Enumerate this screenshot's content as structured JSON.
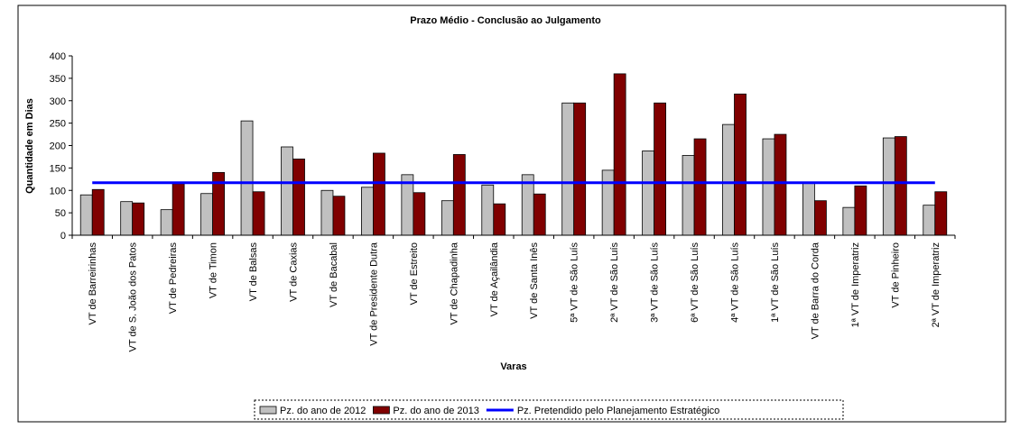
{
  "chart_data": {
    "type": "bar",
    "title": "Prazo Médio - Conclusão ao Julgamento",
    "y_label": "Quantidade em Dias",
    "x_label": "Varas",
    "categories": [
      "VT de Barreirinhas",
      "VT de S. João dos Patos",
      "VT de Pedreiras",
      "VT de Timon",
      "VT de Balsas",
      "VT de Caxias",
      "VT de Bacabal",
      "VT de Presidente Dutra",
      "VT de Estreito",
      "VT de Chapadinha",
      "VT de Açailândia",
      "VT de Santa Inês",
      "5ª VT de São Luís",
      "2ª VT de São Luís",
      "3ª VT de São Luís",
      "6ª VT de São Luís",
      "4ª VT de São Luís",
      "1ª VT de São Luís",
      "VT de Barra do Corda",
      "1ª VT de Imperatriz",
      "VT de Pinheiro",
      "2ª VT de Imperatriz"
    ],
    "series": [
      {
        "name": "Pz. do ano de 2012",
        "color": "#c0c0c0",
        "values": [
          90,
          75,
          57,
          93,
          255,
          197,
          100,
          107,
          135,
          77,
          112,
          135,
          295,
          145,
          188,
          178,
          247,
          215,
          118,
          62,
          217,
          67
        ]
      },
      {
        "name": "Pz. do ano de 2013",
        "color": "#800000",
        "values": [
          102,
          72,
          115,
          140,
          97,
          170,
          87,
          183,
          95,
          180,
          70,
          92,
          295,
          360,
          295,
          215,
          315,
          225,
          77,
          110,
          220,
          97
        ]
      },
      {
        "name": "Pz. Pretendido pelo Planejamento Estratégico",
        "color": "#0000ff",
        "line": true,
        "values": [
          117,
          117,
          117,
          117,
          117,
          117,
          117,
          117,
          117,
          117,
          117,
          117,
          117,
          117,
          117,
          117,
          117,
          117,
          117,
          117,
          117,
          117
        ]
      }
    ],
    "ylim": [
      0,
      400
    ],
    "yticks": [
      0,
      50,
      100,
      150,
      200,
      250,
      300,
      350,
      400
    ],
    "grid": false
  }
}
